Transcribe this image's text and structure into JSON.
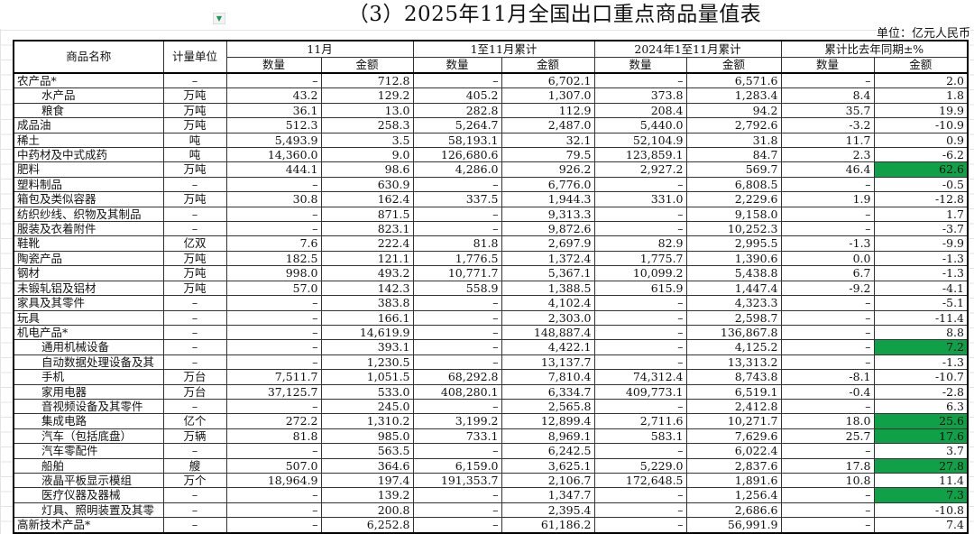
{
  "title": "（3）2025年11月全国出口重点商品量值表",
  "unit_note": "单位：亿元人民币",
  "highlight_color": "#0fa048",
  "filter_icon": "dropdown-filter-icon",
  "headers": {
    "name": "商品名称",
    "unit": "计量单位",
    "groups": [
      "11月",
      "1至11月累计",
      "2024年1至11月累计",
      "累计比去年同期±%"
    ],
    "sub": [
      "数量",
      "金额",
      "数量",
      "金额",
      "数量",
      "金额",
      "数量",
      "金额"
    ]
  },
  "rows": [
    {
      "name": "农产品*",
      "unit": "–",
      "cells": [
        "–",
        "712.8",
        "–",
        "6,702.1",
        "–",
        "6,571.6",
        "–",
        "2.0"
      ],
      "indent": false,
      "highlight": false
    },
    {
      "name": "水产品",
      "unit": "万吨",
      "cells": [
        "43.2",
        "129.2",
        "405.2",
        "1,307.0",
        "373.8",
        "1,283.4",
        "8.4",
        "1.8"
      ],
      "indent": true,
      "highlight": false
    },
    {
      "name": "粮食",
      "unit": "万吨",
      "cells": [
        "36.1",
        "13.0",
        "282.8",
        "112.9",
        "208.4",
        "94.2",
        "35.7",
        "19.9"
      ],
      "indent": true,
      "highlight": false
    },
    {
      "name": "成品油",
      "unit": "万吨",
      "cells": [
        "512.3",
        "258.3",
        "5,264.7",
        "2,487.0",
        "5,440.0",
        "2,792.6",
        "-3.2",
        "-10.9"
      ],
      "indent": false,
      "highlight": false
    },
    {
      "name": "稀土",
      "unit": "吨",
      "cells": [
        "5,493.9",
        "3.5",
        "58,193.1",
        "32.1",
        "52,104.9",
        "31.8",
        "11.7",
        "0.9"
      ],
      "indent": false,
      "highlight": false
    },
    {
      "name": "中药材及中式成药",
      "unit": "吨",
      "cells": [
        "14,360.0",
        "9.0",
        "126,680.6",
        "79.5",
        "123,859.1",
        "84.7",
        "2.3",
        "-6.2"
      ],
      "indent": false,
      "highlight": false
    },
    {
      "name": "肥料",
      "unit": "万吨",
      "cells": [
        "444.1",
        "98.6",
        "4,286.0",
        "926.2",
        "2,927.2",
        "569.7",
        "46.4",
        "62.6"
      ],
      "indent": false,
      "highlight": true
    },
    {
      "name": "塑料制品",
      "unit": "–",
      "cells": [
        "–",
        "630.9",
        "–",
        "6,776.0",
        "–",
        "6,808.5",
        "–",
        "-0.5"
      ],
      "indent": false,
      "highlight": false
    },
    {
      "name": "箱包及类似容器",
      "unit": "万吨",
      "cells": [
        "30.8",
        "162.4",
        "337.5",
        "1,944.3",
        "331.0",
        "2,229.6",
        "1.9",
        "-12.8"
      ],
      "indent": false,
      "highlight": false
    },
    {
      "name": "纺织纱线、织物及其制品",
      "unit": "–",
      "cells": [
        "–",
        "871.5",
        "–",
        "9,313.3",
        "–",
        "9,158.0",
        "–",
        "1.7"
      ],
      "indent": false,
      "highlight": false
    },
    {
      "name": "服装及衣着附件",
      "unit": "–",
      "cells": [
        "–",
        "823.1",
        "–",
        "9,872.6",
        "–",
        "10,252.3",
        "–",
        "-3.7"
      ],
      "indent": false,
      "highlight": false
    },
    {
      "name": "鞋靴",
      "unit": "亿双",
      "cells": [
        "7.6",
        "222.4",
        "81.8",
        "2,697.9",
        "82.9",
        "2,995.5",
        "-1.3",
        "-9.9"
      ],
      "indent": false,
      "highlight": false
    },
    {
      "name": "陶瓷产品",
      "unit": "万吨",
      "cells": [
        "182.5",
        "121.1",
        "1,776.5",
        "1,372.4",
        "1,775.7",
        "1,390.6",
        "0.0",
        "-1.3"
      ],
      "indent": false,
      "highlight": false
    },
    {
      "name": "钢材",
      "unit": "万吨",
      "cells": [
        "998.0",
        "493.2",
        "10,771.7",
        "5,367.1",
        "10,099.2",
        "5,438.8",
        "6.7",
        "-1.3"
      ],
      "indent": false,
      "highlight": false
    },
    {
      "name": "未锻轧铝及铝材",
      "unit": "万吨",
      "cells": [
        "57.0",
        "142.3",
        "558.9",
        "1,388.5",
        "615.9",
        "1,447.4",
        "-9.2",
        "-4.1"
      ],
      "indent": false,
      "highlight": false
    },
    {
      "name": "家具及其零件",
      "unit": "–",
      "cells": [
        "–",
        "383.8",
        "–",
        "4,102.4",
        "–",
        "4,323.3",
        "–",
        "-5.1"
      ],
      "indent": false,
      "highlight": false
    },
    {
      "name": "玩具",
      "unit": "–",
      "cells": [
        "–",
        "166.1",
        "–",
        "2,303.0",
        "–",
        "2,598.7",
        "–",
        "-11.4"
      ],
      "indent": false,
      "highlight": false
    },
    {
      "name": "机电产品*",
      "unit": "–",
      "cells": [
        "–",
        "14,619.9",
        "–",
        "148,887.4",
        "–",
        "136,867.8",
        "–",
        "8.8"
      ],
      "indent": false,
      "highlight": false
    },
    {
      "name": "通用机械设备",
      "unit": "–",
      "cells": [
        "–",
        "393.1",
        "–",
        "4,422.1",
        "–",
        "4,125.2",
        "–",
        "7.2"
      ],
      "indent": true,
      "highlight": true
    },
    {
      "name": "自动数据处理设备及其",
      "unit": "–",
      "cells": [
        "–",
        "1,230.5",
        "–",
        "13,137.7",
        "–",
        "13,313.2",
        "–",
        "-1.3"
      ],
      "indent": true,
      "highlight": false
    },
    {
      "name": "手机",
      "unit": "万台",
      "cells": [
        "7,511.7",
        "1,051.5",
        "68,292.8",
        "7,810.4",
        "74,312.4",
        "8,743.8",
        "-8.1",
        "-10.7"
      ],
      "indent": true,
      "highlight": false
    },
    {
      "name": "家用电器",
      "unit": "万台",
      "cells": [
        "37,125.7",
        "533.0",
        "408,280.1",
        "6,334.7",
        "409,773.1",
        "6,519.1",
        "-0.4",
        "-2.8"
      ],
      "indent": true,
      "highlight": false
    },
    {
      "name": "音视频设备及其零件",
      "unit": "–",
      "cells": [
        "–",
        "245.0",
        "–",
        "2,565.8",
        "–",
        "2,412.8",
        "–",
        "6.3"
      ],
      "indent": true,
      "highlight": false
    },
    {
      "name": "集成电路",
      "unit": "亿个",
      "cells": [
        "272.2",
        "1,310.2",
        "3,199.2",
        "12,899.4",
        "2,711.6",
        "10,271.7",
        "18.0",
        "25.6"
      ],
      "indent": true,
      "highlight": true
    },
    {
      "name": "汽车（包括底盘）",
      "unit": "万辆",
      "cells": [
        "81.8",
        "985.0",
        "733.1",
        "8,969.1",
        "583.1",
        "7,629.6",
        "25.7",
        "17.6"
      ],
      "indent": true,
      "highlight": true
    },
    {
      "name": "汽车零配件",
      "unit": "–",
      "cells": [
        "–",
        "563.5",
        "–",
        "6,242.5",
        "–",
        "6,022.4",
        "–",
        "3.7"
      ],
      "indent": true,
      "highlight": false
    },
    {
      "name": "船舶",
      "unit": "艘",
      "cells": [
        "507.0",
        "364.6",
        "6,159.0",
        "3,625.1",
        "5,229.0",
        "2,837.6",
        "17.8",
        "27.8"
      ],
      "indent": true,
      "highlight": true
    },
    {
      "name": "液晶平板显示模组",
      "unit": "万个",
      "cells": [
        "18,964.9",
        "197.4",
        "191,353.7",
        "2,106.7",
        "172,648.5",
        "1,891.6",
        "10.8",
        "11.4"
      ],
      "indent": true,
      "highlight": false
    },
    {
      "name": "医疗仪器及器械",
      "unit": "–",
      "cells": [
        "–",
        "139.2",
        "–",
        "1,347.7",
        "–",
        "1,256.4",
        "–",
        "7.3"
      ],
      "indent": true,
      "highlight": true
    },
    {
      "name": "灯具、照明装置及其零",
      "unit": "–",
      "cells": [
        "–",
        "200.8",
        "–",
        "2,395.4",
        "–",
        "2,686.6",
        "–",
        "-10.8"
      ],
      "indent": true,
      "highlight": false
    },
    {
      "name": "高新技术产品*",
      "unit": "–",
      "cells": [
        "–",
        "6,252.8",
        "–",
        "61,186.2",
        "–",
        "56,991.9",
        "–",
        "7.4"
      ],
      "indent": false,
      "highlight": false
    }
  ]
}
